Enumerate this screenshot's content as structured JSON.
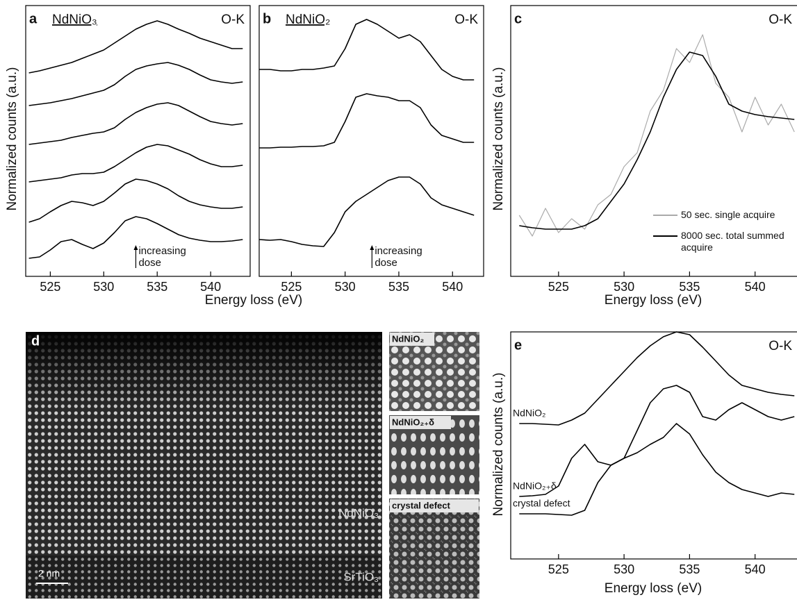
{
  "chart_data": [
    {
      "type": "line",
      "panel_label": "a",
      "title": "NdNiO₃",
      "corner_label": "O-K",
      "ylabel": "Normalized counts (a.u.)",
      "annotation_lines": [
        "increasing",
        "dose"
      ],
      "annotation_x": 533,
      "x": [
        523,
        524,
        525,
        526,
        527,
        528,
        529,
        530,
        531,
        532,
        533,
        534,
        535,
        536,
        537,
        538,
        539,
        540,
        541,
        542,
        543
      ],
      "xlim": [
        522.7,
        543.5
      ],
      "xticks": [
        525,
        530,
        535,
        540
      ],
      "ylim": [
        0,
        390
      ],
      "series": [
        {
          "color": "#000000",
          "values": [
            26,
            28,
            38,
            50,
            53,
            46,
            40,
            48,
            63,
            80,
            86,
            83,
            76,
            68,
            60,
            55,
            52,
            50,
            50,
            51,
            53
          ]
        },
        {
          "color": "#000000",
          "values": [
            78,
            83,
            93,
            102,
            108,
            106,
            102,
            108,
            120,
            133,
            140,
            138,
            133,
            126,
            116,
            108,
            103,
            100,
            98,
            98,
            100
          ]
        },
        {
          "color": "#000000",
          "values": [
            136,
            138,
            140,
            142,
            146,
            148,
            148,
            150,
            158,
            168,
            178,
            186,
            190,
            188,
            182,
            176,
            168,
            162,
            158,
            158,
            160
          ]
        },
        {
          "color": "#000000",
          "values": [
            190,
            192,
            194,
            196,
            200,
            203,
            206,
            208,
            214,
            226,
            236,
            243,
            248,
            250,
            246,
            238,
            230,
            223,
            220,
            218,
            220
          ]
        },
        {
          "color": "#000000",
          "values": [
            246,
            248,
            250,
            253,
            256,
            260,
            264,
            268,
            276,
            288,
            298,
            303,
            306,
            308,
            304,
            298,
            290,
            283,
            280,
            278,
            280
          ]
        },
        {
          "color": "#000000",
          "values": [
            293,
            296,
            300,
            304,
            308,
            314,
            320,
            326,
            336,
            346,
            356,
            363,
            368,
            363,
            356,
            350,
            343,
            338,
            333,
            328,
            328
          ]
        }
      ]
    },
    {
      "type": "line",
      "panel_label": "b",
      "title": "NdNiO₂",
      "corner_label": "O-K",
      "xlabel": "Energy loss (eV)",
      "annotation_lines": [
        "increasing",
        "dose"
      ],
      "annotation_x": 532.5,
      "x": [
        522,
        523,
        524,
        525,
        526,
        527,
        528,
        529,
        530,
        531,
        532,
        533,
        534,
        535,
        536,
        537,
        538,
        539,
        540,
        541,
        542
      ],
      "xlim": [
        522,
        542.7
      ],
      "xticks": [
        525,
        530,
        535,
        540
      ],
      "ylim": [
        0,
        390
      ],
      "series": [
        {
          "color": "#000000",
          "values": [
            53,
            52,
            53,
            50,
            46,
            44,
            43,
            63,
            93,
            108,
            118,
            128,
            138,
            143,
            143,
            133,
            113,
            103,
            98,
            93,
            88
          ]
        },
        {
          "color": "#000000",
          "values": [
            185,
            185,
            186,
            186,
            187,
            187,
            188,
            193,
            223,
            258,
            263,
            260,
            258,
            253,
            253,
            243,
            218,
            203,
            198,
            193,
            193
          ]
        },
        {
          "color": "#000000",
          "values": [
            298,
            298,
            296,
            296,
            298,
            298,
            300,
            303,
            328,
            363,
            370,
            363,
            353,
            343,
            348,
            338,
            318,
            298,
            288,
            283,
            283
          ]
        }
      ]
    },
    {
      "type": "line",
      "panel_label": "c",
      "corner_label": "O-K",
      "xlabel": "Energy loss (eV)",
      "ylabel": "Normalized counts (a.u.)",
      "x": [
        522,
        523,
        524,
        525,
        526,
        527,
        528,
        529,
        530,
        531,
        532,
        533,
        534,
        535,
        536,
        537,
        538,
        539,
        540,
        541,
        542,
        543
      ],
      "xlim": [
        521.35,
        543.2
      ],
      "xticks": [
        525,
        530,
        535,
        540
      ],
      "ylim": [
        -8,
        382
      ],
      "legend": "lower right",
      "series": [
        {
          "name": "50 sec. single acquire",
          "color": "#aaaaaa",
          "values": [
            80,
            50,
            90,
            55,
            75,
            60,
            95,
            110,
            150,
            170,
            230,
            260,
            320,
            300,
            340,
            270,
            250,
            200,
            250,
            210,
            240,
            200
          ]
        },
        {
          "name": "8000 sec. total summed acquire",
          "color": "#000000",
          "values": [
            65,
            62,
            60,
            60,
            60,
            65,
            75,
            100,
            125,
            160,
            200,
            250,
            290,
            315,
            310,
            280,
            240,
            230,
            225,
            222,
            220,
            218
          ]
        }
      ]
    },
    {
      "type": "line",
      "panel_label": "e",
      "corner_label": "O-K",
      "xlabel": "Energy loss (eV)",
      "ylabel": "Normalized counts (a.u.)",
      "x": [
        522,
        523,
        524,
        525,
        526,
        527,
        528,
        529,
        530,
        531,
        532,
        533,
        534,
        535,
        536,
        537,
        538,
        539,
        540,
        541,
        542,
        543
      ],
      "xlim": [
        521.35,
        543.2
      ],
      "xticks": [
        525,
        530,
        535,
        540
      ],
      "ylim": [
        -45,
        282
      ],
      "series": [
        {
          "name": "NdNiO₂",
          "color": "#000000",
          "values": [
            150,
            150,
            149,
            148,
            155,
            165,
            185,
            205,
            225,
            245,
            262,
            275,
            282,
            278,
            260,
            240,
            220,
            205,
            200,
            195,
            192,
            190
          ]
        },
        {
          "name": "NdNiO₂₊δ",
          "color": "#000000",
          "values": [
            45,
            46,
            48,
            60,
            100,
            120,
            95,
            90,
            100,
            140,
            180,
            200,
            205,
            195,
            160,
            155,
            170,
            180,
            170,
            160,
            155,
            160
          ]
        },
        {
          "name": "crystal defect",
          "color": "#000000",
          "values": [
            20,
            20,
            20,
            19,
            18,
            25,
            65,
            90,
            100,
            108,
            120,
            130,
            150,
            135,
            105,
            80,
            65,
            55,
            50,
            45,
            50,
            48
          ]
        }
      ]
    }
  ],
  "image_panel": {
    "panel_label": "d",
    "film_label": "NdNiO₃",
    "substrate_label": "SrTiO₃",
    "scale_bar": "2 nm",
    "insets": [
      "NdNiO₂",
      "NdNiO₂₊δ",
      "crystal defect"
    ]
  }
}
